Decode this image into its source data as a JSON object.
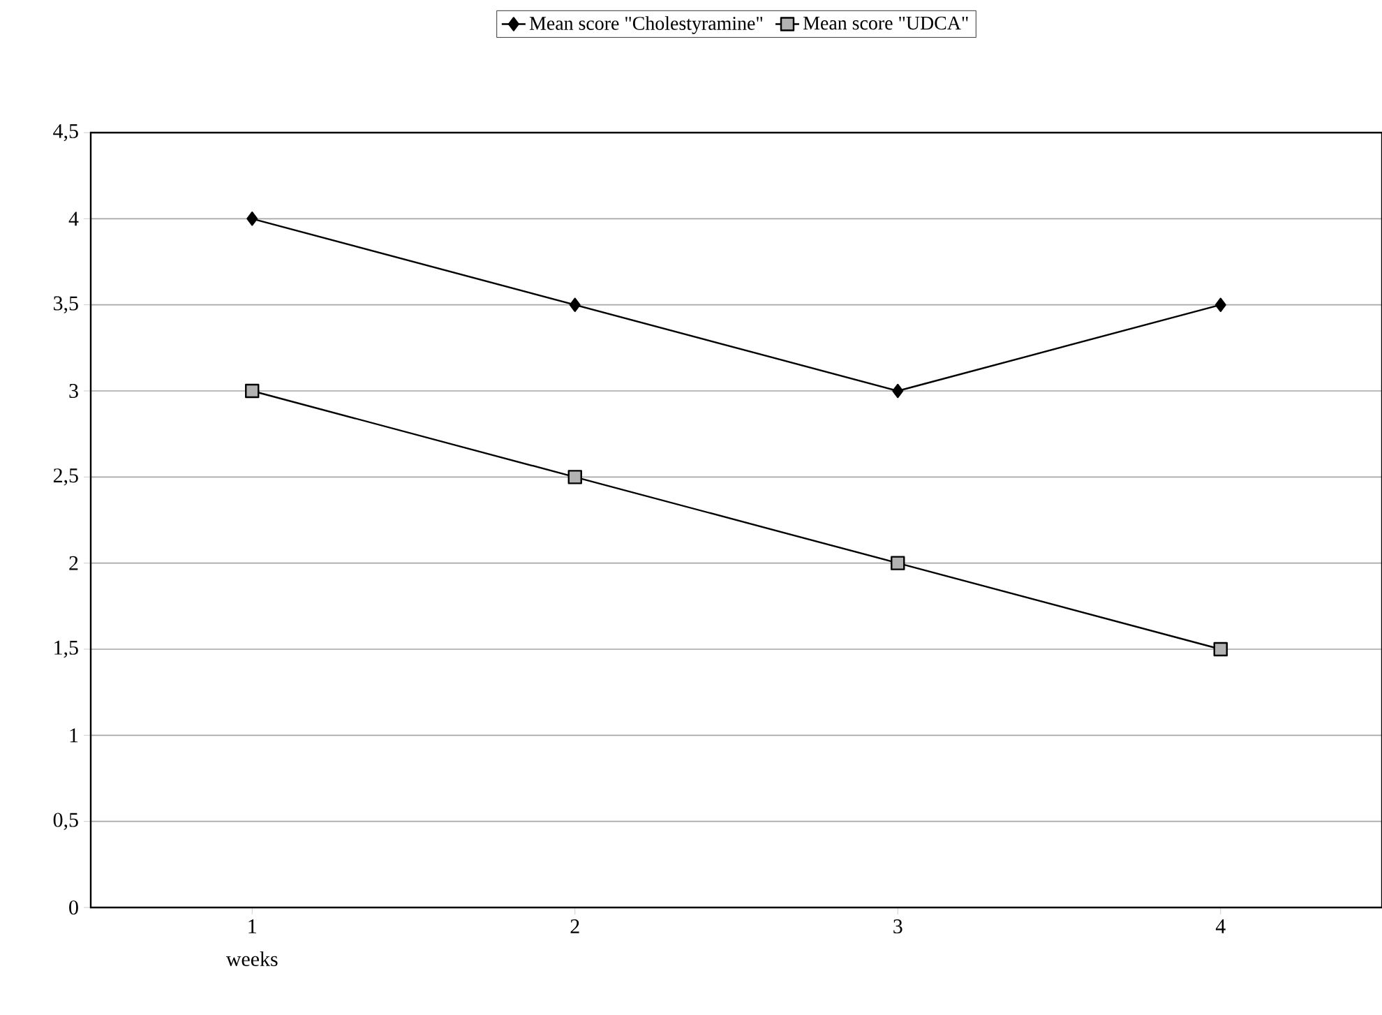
{
  "chart_data": {
    "type": "line",
    "categories": [
      "1",
      "2",
      "3",
      "4"
    ],
    "xlabel": "weeks",
    "series": [
      {
        "name": "Mean score \"Cholestyramine\"",
        "color": "#000000",
        "marker": "diamond",
        "values": [
          4,
          3.5,
          3,
          3.5
        ]
      },
      {
        "name": "Mean score \"UDCA\"",
        "color": "#000000",
        "marker": "square",
        "values": [
          3,
          2.5,
          2,
          1.5
        ]
      }
    ],
    "ylim": [
      0,
      4.5
    ],
    "yticks": [
      {
        "value": 0,
        "label": "0"
      },
      {
        "value": 0.5,
        "label": "0,5"
      },
      {
        "value": 1,
        "label": "1"
      },
      {
        "value": 1.5,
        "label": "1,5"
      },
      {
        "value": 2,
        "label": "2"
      },
      {
        "value": 2.5,
        "label": "2,5"
      },
      {
        "value": 3,
        "label": "3"
      },
      {
        "value": 3.5,
        "label": "3,5"
      },
      {
        "value": 4,
        "label": "4"
      },
      {
        "value": 4.5,
        "label": "4,5"
      }
    ],
    "grid": "y",
    "legend": "top",
    "line_style": "solid"
  }
}
